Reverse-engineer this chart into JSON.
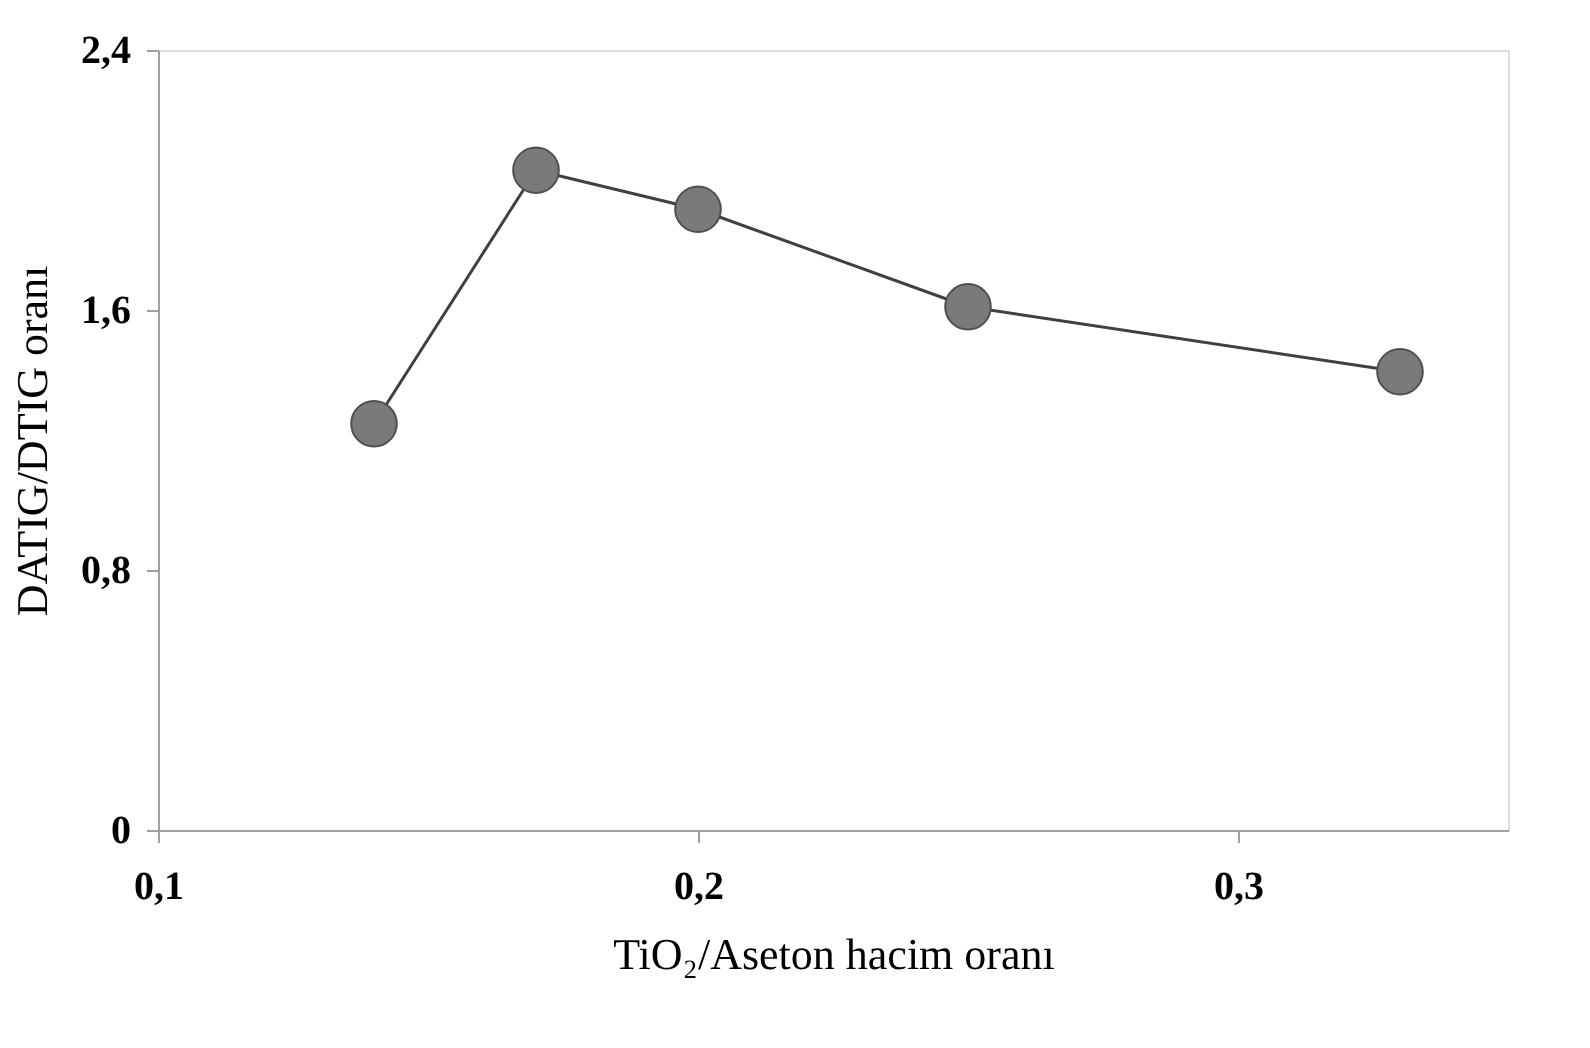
{
  "chart_data": {
    "type": "line",
    "xlabel": "TiO₂/Aseton hacim oranı",
    "ylabel": "DATIG/DTIG oranı",
    "x": [
      0.14,
      0.17,
      0.2,
      0.25,
      0.33
    ],
    "series": [
      {
        "color": "#7a7a7a",
        "values": [
          1.25,
          2.03,
          1.91,
          1.61,
          1.41
        ]
      }
    ],
    "xlim": [
      0.1,
      0.35
    ],
    "xticks": [
      {
        "value": 0.1,
        "label": "0,1"
      },
      {
        "value": 0.2,
        "label": "0,2"
      },
      {
        "value": 0.3,
        "label": "0,3"
      }
    ],
    "ylim": [
      0,
      2.4
    ],
    "yticks": [
      0,
      {
        "value": 0.8,
        "label": "0,8"
      },
      {
        "value": 1.6,
        "label": "1,6"
      },
      {
        "value": 2.4,
        "label": "2,4"
      }
    ],
    "grid": false,
    "marker": "circle",
    "line_style": "solid"
  }
}
